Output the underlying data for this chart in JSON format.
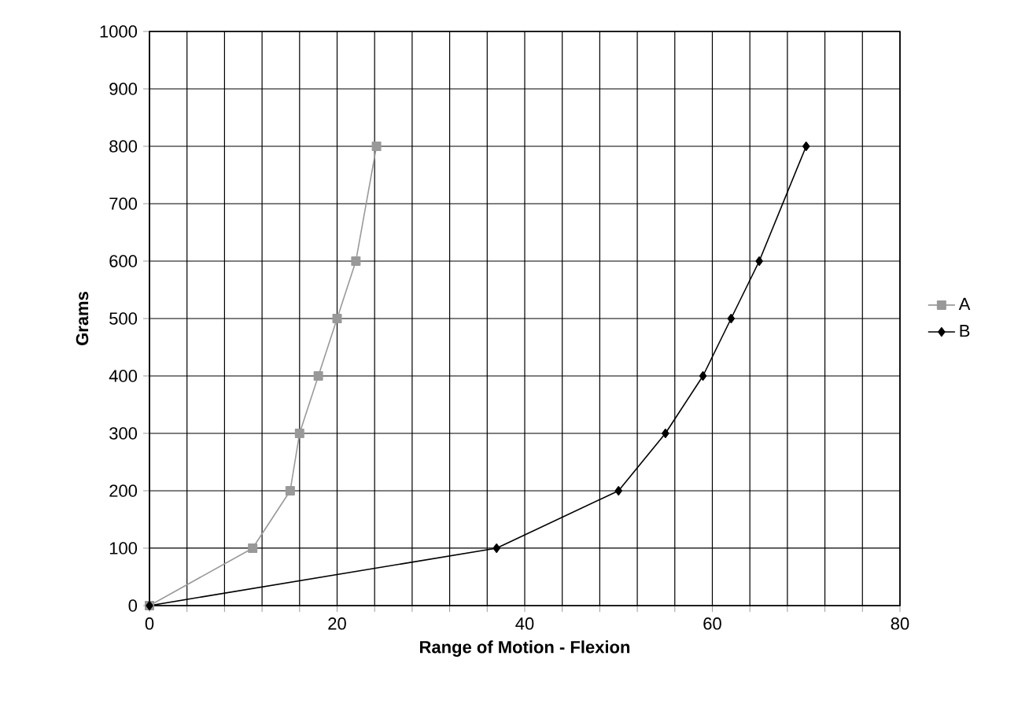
{
  "chart_data": {
    "type": "line",
    "xlabel": "Range of Motion - Flexion",
    "ylabel": "Grams",
    "xlim": [
      0,
      80
    ],
    "ylim": [
      0,
      1000
    ],
    "xticks": [
      0,
      {
        "value": 4,
        "label": null
      },
      {
        "value": 8,
        "label": null
      },
      {
        "value": 12,
        "label": null
      },
      {
        "value": 16,
        "label": null
      },
      20,
      {
        "value": 24,
        "label": null
      },
      {
        "value": 28,
        "label": null
      },
      {
        "value": 32,
        "label": null
      },
      {
        "value": 36,
        "label": null
      },
      40,
      {
        "value": 44,
        "label": null
      },
      {
        "value": 48,
        "label": null
      },
      {
        "value": 52,
        "label": null
      },
      {
        "value": 56,
        "label": null
      },
      60,
      {
        "value": 64,
        "label": null
      },
      {
        "value": 68,
        "label": null
      },
      {
        "value": 72,
        "label": null
      },
      {
        "value": 76,
        "label": null
      },
      80
    ],
    "yticks": [
      0,
      100,
      200,
      300,
      400,
      500,
      600,
      700,
      800,
      900,
      1000
    ],
    "grid": true,
    "legend": "right",
    "line_style": "solid",
    "series": [
      {
        "name": "A",
        "color": "#999999",
        "marker": "square",
        "x": [
          0,
          11,
          15,
          16,
          18,
          20,
          22,
          24.2
        ],
        "values": [
          0,
          100,
          200,
          300,
          400,
          500,
          600,
          800
        ]
      },
      {
        "name": "B",
        "color": "#000000",
        "marker": "diamond",
        "x": [
          0,
          37,
          50,
          55,
          59,
          62,
          65,
          70
        ],
        "values": [
          0,
          100,
          200,
          300,
          400,
          500,
          600,
          800
        ]
      }
    ]
  }
}
